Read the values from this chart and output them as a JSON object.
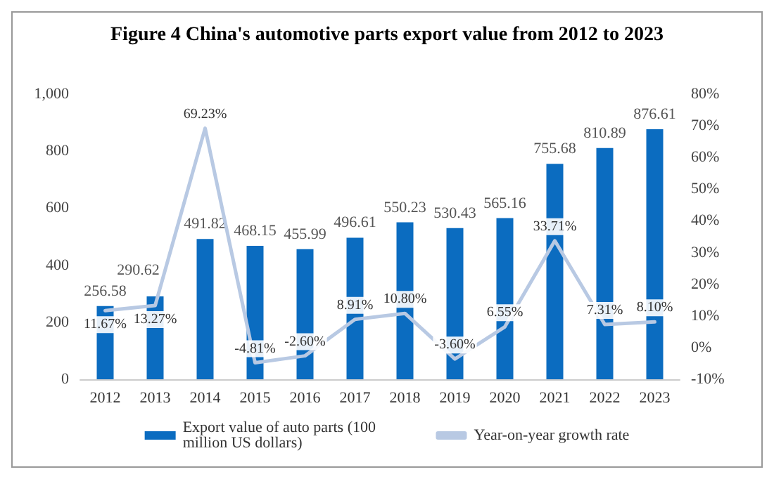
{
  "chart_data": {
    "type": "bar",
    "title": "Figure 4 China's automotive parts export value from 2012 to 2023",
    "categories": [
      "2012",
      "2013",
      "2014",
      "2015",
      "2016",
      "2017",
      "2018",
      "2019",
      "2020",
      "2021",
      "2022",
      "2023"
    ],
    "series": [
      {
        "name": "Export value of auto parts (100 million US dollars)",
        "color": "#0b6cc0",
        "values": [
          256.58,
          290.62,
          491.82,
          468.15,
          455.99,
          496.61,
          550.23,
          530.43,
          565.16,
          755.68,
          810.89,
          876.61
        ]
      },
      {
        "name": "Year-on-year growth rate",
        "type": "line",
        "axis": "y2",
        "color": "#b8c9e3",
        "values": [
          11.67,
          13.27,
          69.23,
          -4.81,
          -2.6,
          8.91,
          10.8,
          -3.6,
          6.55,
          33.71,
          7.31,
          8.1
        ],
        "value_labels": [
          "11.67%",
          "13.27%",
          "69.23%",
          "-4.81%",
          "-2.60%",
          "8.91%",
          "10.80%",
          "-3.60%",
          "6.55%",
          "33.71%",
          "7.31%",
          "8.10%"
        ]
      }
    ],
    "data_labels": true,
    "ylim": [
      0,
      1000
    ],
    "yticks": [
      0,
      200,
      400,
      600,
      800,
      {
        "value": 1000,
        "label": "1,000"
      }
    ],
    "y2lim": [
      -10,
      80
    ],
    "y2ticks": [
      {
        "value": -10,
        "label": "-10%"
      },
      {
        "value": 0,
        "label": "0%"
      },
      {
        "value": 10,
        "label": "10%"
      },
      {
        "value": 20,
        "label": "20%"
      },
      {
        "value": 30,
        "label": "30%"
      },
      {
        "value": 40,
        "label": "40%"
      },
      {
        "value": 50,
        "label": "50%"
      },
      {
        "value": 60,
        "label": "60%"
      },
      {
        "value": 70,
        "label": "70%"
      },
      {
        "value": 80,
        "label": "80%"
      }
    ],
    "grid": false,
    "legend": "bottom",
    "marker": "none",
    "line_style": "solid"
  }
}
